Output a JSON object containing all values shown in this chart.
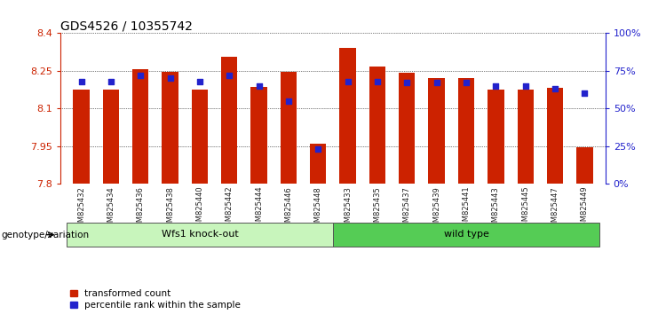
{
  "title": "GDS4526 / 10355742",
  "samples": [
    "GSM825432",
    "GSM825434",
    "GSM825436",
    "GSM825438",
    "GSM825440",
    "GSM825442",
    "GSM825444",
    "GSM825446",
    "GSM825448",
    "GSM825433",
    "GSM825435",
    "GSM825437",
    "GSM825439",
    "GSM825441",
    "GSM825443",
    "GSM825445",
    "GSM825447",
    "GSM825449"
  ],
  "transformed_count": [
    8.175,
    8.175,
    8.255,
    8.245,
    8.175,
    8.305,
    8.185,
    8.245,
    7.96,
    8.34,
    8.268,
    8.24,
    8.22,
    8.22,
    8.175,
    8.175,
    8.18,
    7.945
  ],
  "percentile_rank": [
    68,
    68,
    72,
    70,
    68,
    72,
    65,
    55,
    23,
    68,
    68,
    67,
    67,
    67,
    65,
    65,
    63,
    60
  ],
  "ko_count": 9,
  "ymin": 7.8,
  "ymax": 8.4,
  "ytick_vals": [
    7.8,
    7.95,
    8.1,
    8.25,
    8.4
  ],
  "right_ytick_vals": [
    0,
    25,
    50,
    75,
    100
  ],
  "bar_color": "#cc2200",
  "blue_color": "#2222cc",
  "bar_width": 0.55,
  "ko_label": "Wfs1 knock-out",
  "wt_label": "wild type",
  "ko_bg": "#c8f5bc",
  "wt_bg": "#55cc55",
  "group_label": "genotype/variation",
  "legend_red": "transformed count",
  "legend_blue": "percentile rank within the sample",
  "title_fontsize": 10,
  "ytick_fontsize": 8,
  "sample_fontsize": 6.0,
  "group_fontsize": 8,
  "legend_fontsize": 7.5
}
